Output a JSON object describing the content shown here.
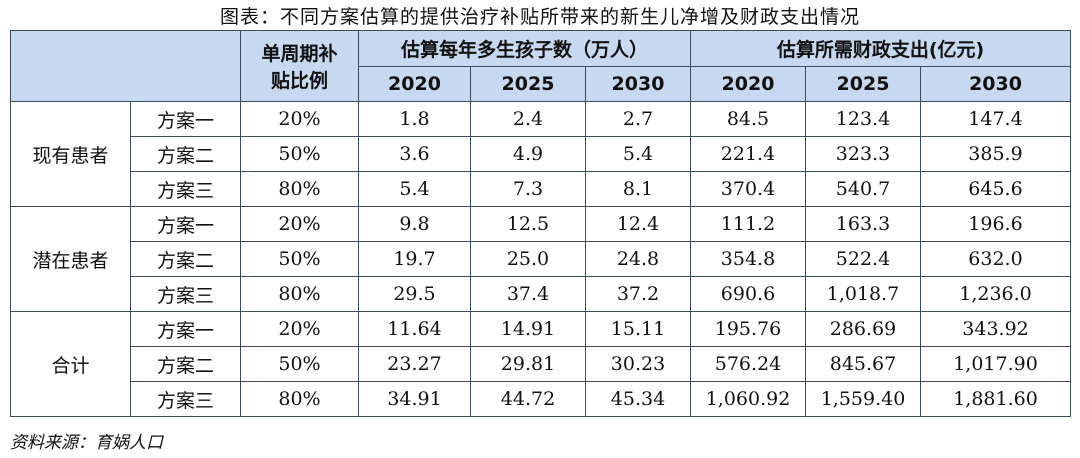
{
  "title": "图表：不同方案估算的提供治疗补贴所带来的新生儿净增及财政支出情况",
  "header": {
    "ratio": "单周期补贴比例",
    "births": "估算每年多生孩子数（万人）",
    "fiscal": "估算所需财政支出(亿元)",
    "years": [
      "2020",
      "2025",
      "2030",
      "2020",
      "2025",
      "2030"
    ]
  },
  "groups": [
    {
      "name": "现有患者",
      "rows": [
        [
          "方案一",
          "20%",
          "1.8",
          "2.4",
          "2.7",
          "84.5",
          "123.4",
          "147.4"
        ],
        [
          "方案二",
          "50%",
          "3.6",
          "4.9",
          "5.4",
          "221.4",
          "323.3",
          "385.9"
        ],
        [
          "方案三",
          "80%",
          "5.4",
          "7.3",
          "8.1",
          "370.4",
          "540.7",
          "645.6"
        ]
      ]
    },
    {
      "name": "潜在患者",
      "rows": [
        [
          "方案一",
          "20%",
          "9.8",
          "12.5",
          "12.4",
          "111.2",
          "163.3",
          "196.6"
        ],
        [
          "方案二",
          "50%",
          "19.7",
          "25.0",
          "24.8",
          "354.8",
          "522.4",
          "632.0"
        ],
        [
          "方案三",
          "80%",
          "29.5",
          "37.4",
          "37.2",
          "690.6",
          "1,018.7",
          "1,236.0"
        ]
      ]
    },
    {
      "name": "合计",
      "rows": [
        [
          "方案一",
          "20%",
          "11.64",
          "14.91",
          "15.11",
          "195.76",
          "286.69",
          "343.92"
        ],
        [
          "方案二",
          "50%",
          "23.27",
          "29.81",
          "30.23",
          "576.24",
          "845.67",
          "1,017.90"
        ],
        [
          "方案三",
          "80%",
          "34.91",
          "44.72",
          "45.34",
          "1,060.92",
          "1,559.40",
          "1,881.60"
        ]
      ]
    }
  ],
  "source": "资料来源：育娲人口"
}
